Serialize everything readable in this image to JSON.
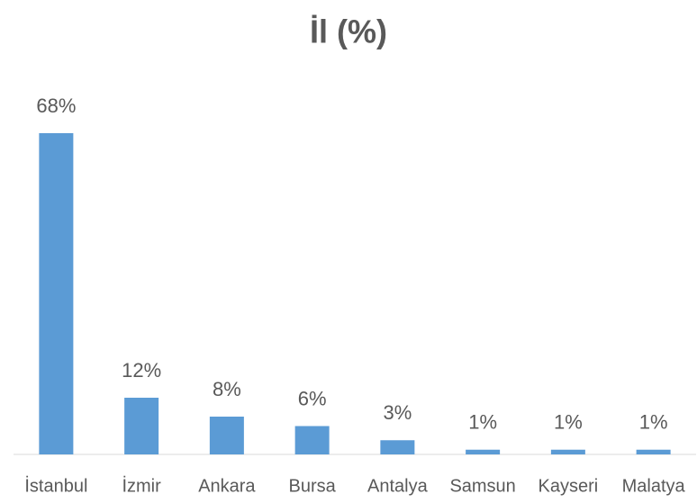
{
  "chart_data": {
    "type": "bar",
    "title": "İl (%)",
    "categories": [
      "İstanbul",
      "İzmir",
      "Ankara",
      "Bursa",
      "Antalya",
      "Samsun",
      "Kayseri",
      "Malatya"
    ],
    "values": [
      68,
      12,
      8,
      6,
      3,
      1,
      1,
      1
    ],
    "value_labels": [
      "68%",
      "12%",
      "8%",
      "6%",
      "3%",
      "1%",
      "1%",
      "1%"
    ],
    "color": "#5b9bd5"
  }
}
